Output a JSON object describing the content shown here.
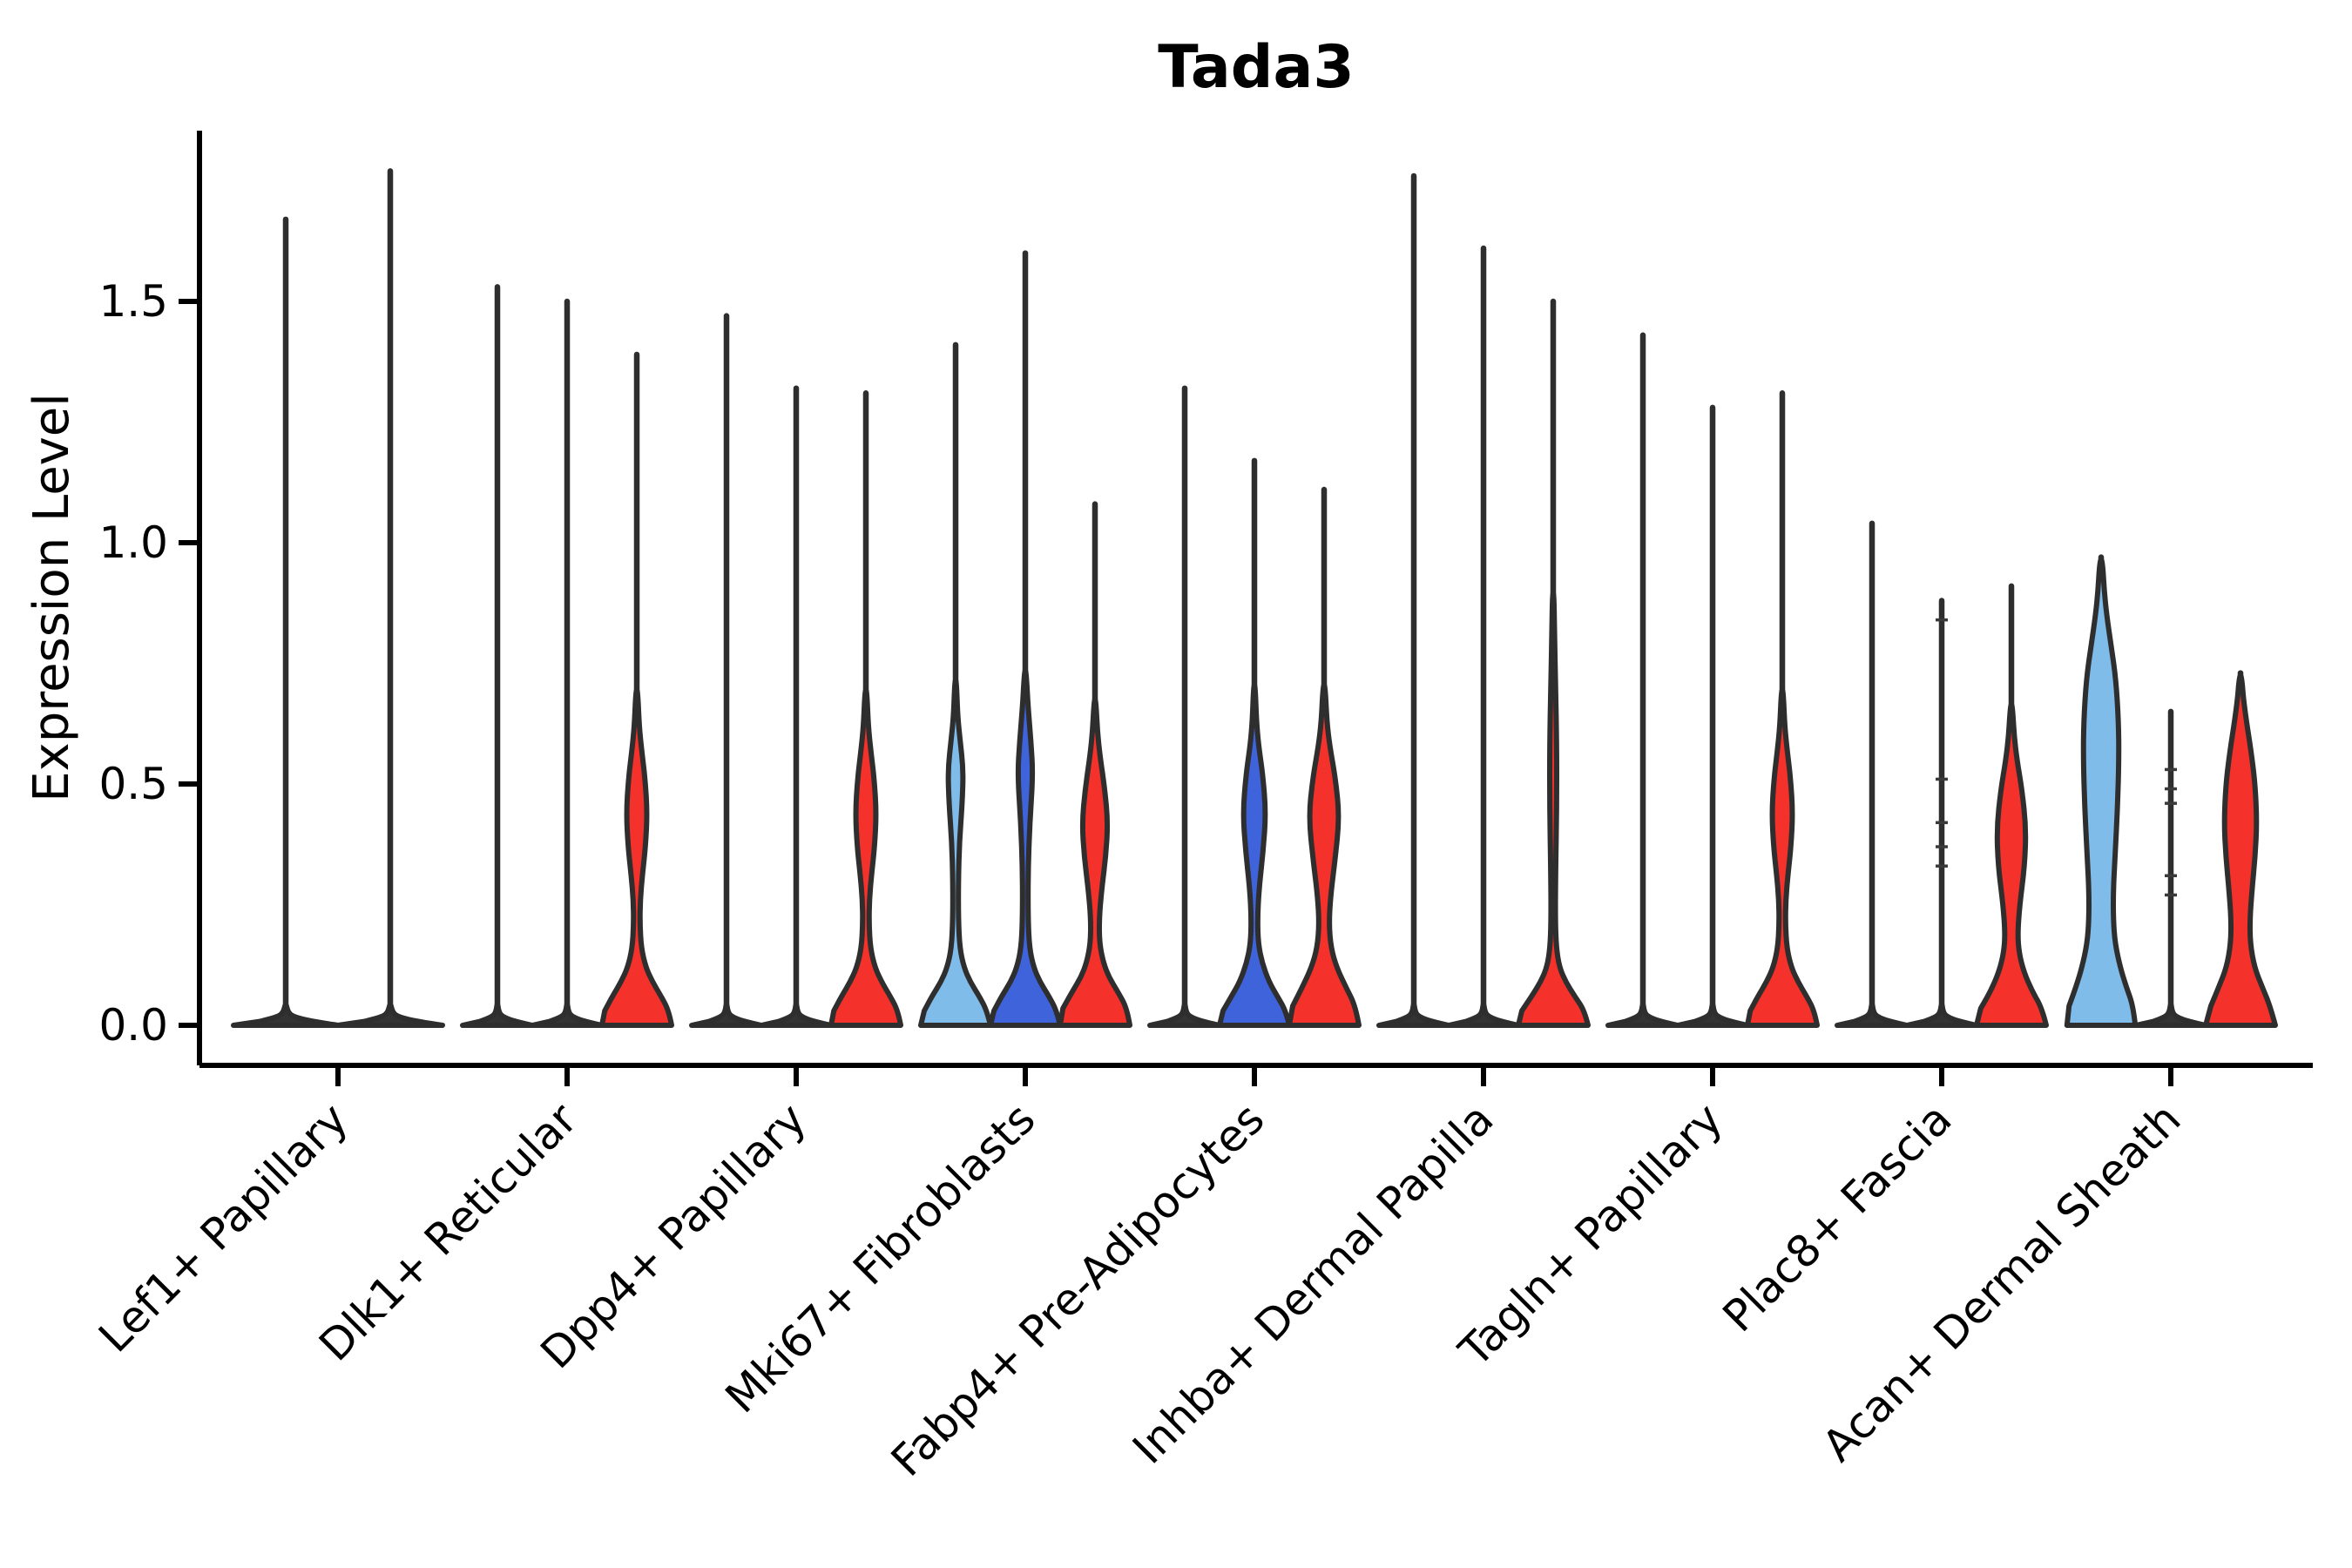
{
  "title": "Tada3",
  "axes": {
    "ylabel": "Expression Level",
    "xlabel": ""
  },
  "colors": {
    "red": "#f4312a",
    "light_blue": "#80bce9",
    "dark_blue": "#3f63da",
    "dark": "#333333",
    "outline": "#2e2e2e",
    "axis": "#000000",
    "background": "#ffffff"
  },
  "chart_data": {
    "type": "violin",
    "title": "Tada3",
    "ylabel": "Expression Level",
    "xlabel": "",
    "ylim": [
      -0.08,
      1.85
    ],
    "grid": false,
    "legend": null,
    "y_ticks": [
      {
        "value": 0.0,
        "label": "0.0"
      },
      {
        "value": 0.5,
        "label": "0.5"
      },
      {
        "value": 1.0,
        "label": "1.0"
      },
      {
        "value": 1.5,
        "label": "1.5"
      }
    ],
    "profiles": {
      "flat": [
        [
          0,
          1.0
        ],
        [
          0.008,
          0.5
        ],
        [
          0.018,
          0.14
        ],
        [
          0.028,
          0.04
        ]
      ],
      "lens": [
        [
          0,
          1.0
        ],
        [
          0.03,
          0.92
        ],
        [
          0.06,
          0.7
        ],
        [
          0.09,
          0.45
        ],
        [
          0.12,
          0.26
        ],
        [
          0.16,
          0.13
        ],
        [
          0.21,
          0.09
        ],
        [
          0.26,
          0.1
        ],
        [
          0.31,
          0.16
        ],
        [
          0.37,
          0.25
        ],
        [
          0.44,
          0.3
        ],
        [
          0.51,
          0.24
        ],
        [
          0.57,
          0.14
        ],
        [
          0.62,
          0.07
        ],
        [
          0.68,
          0.035
        ]
      ],
      "lb4": [
        [
          0,
          1.0
        ],
        [
          0.03,
          0.9
        ],
        [
          0.06,
          0.68
        ],
        [
          0.09,
          0.42
        ],
        [
          0.12,
          0.24
        ],
        [
          0.16,
          0.12
        ],
        [
          0.22,
          0.08
        ],
        [
          0.3,
          0.08
        ],
        [
          0.38,
          0.11
        ],
        [
          0.46,
          0.19
        ],
        [
          0.53,
          0.22
        ],
        [
          0.59,
          0.13
        ],
        [
          0.64,
          0.06
        ],
        [
          0.7,
          0.03
        ]
      ],
      "db4": [
        [
          0,
          1.0
        ],
        [
          0.03,
          0.9
        ],
        [
          0.06,
          0.68
        ],
        [
          0.09,
          0.42
        ],
        [
          0.12,
          0.24
        ],
        [
          0.16,
          0.12
        ],
        [
          0.22,
          0.08
        ],
        [
          0.32,
          0.08
        ],
        [
          0.42,
          0.13
        ],
        [
          0.52,
          0.22
        ],
        [
          0.59,
          0.16
        ],
        [
          0.66,
          0.08
        ],
        [
          0.72,
          0.035
        ]
      ],
      "red4": [
        [
          0,
          1.0
        ],
        [
          0.035,
          0.92
        ],
        [
          0.07,
          0.65
        ],
        [
          0.1,
          0.4
        ],
        [
          0.13,
          0.24
        ],
        [
          0.17,
          0.13
        ],
        [
          0.22,
          0.12
        ],
        [
          0.28,
          0.19
        ],
        [
          0.35,
          0.31
        ],
        [
          0.42,
          0.37
        ],
        [
          0.49,
          0.28
        ],
        [
          0.56,
          0.14
        ],
        [
          0.61,
          0.07
        ],
        [
          0.66,
          0.035
        ]
      ],
      "db5": [
        [
          0,
          1.0
        ],
        [
          0.03,
          0.9
        ],
        [
          0.06,
          0.66
        ],
        [
          0.09,
          0.42
        ],
        [
          0.13,
          0.22
        ],
        [
          0.17,
          0.11
        ],
        [
          0.22,
          0.09
        ],
        [
          0.28,
          0.13
        ],
        [
          0.36,
          0.25
        ],
        [
          0.44,
          0.33
        ],
        [
          0.52,
          0.24
        ],
        [
          0.58,
          0.12
        ],
        [
          0.63,
          0.06
        ],
        [
          0.69,
          0.03
        ]
      ],
      "red5": [
        [
          0,
          1.0
        ],
        [
          0.04,
          0.9
        ],
        [
          0.08,
          0.62
        ],
        [
          0.12,
          0.36
        ],
        [
          0.16,
          0.2
        ],
        [
          0.21,
          0.14
        ],
        [
          0.27,
          0.19
        ],
        [
          0.34,
          0.31
        ],
        [
          0.43,
          0.44
        ],
        [
          0.51,
          0.33
        ],
        [
          0.58,
          0.16
        ],
        [
          0.63,
          0.08
        ],
        [
          0.69,
          0.04
        ]
      ],
      "red6": [
        [
          0,
          1.0
        ],
        [
          0.03,
          0.9
        ],
        [
          0.06,
          0.62
        ],
        [
          0.09,
          0.36
        ],
        [
          0.12,
          0.18
        ],
        [
          0.16,
          0.09
        ],
        [
          0.22,
          0.06
        ],
        [
          0.32,
          0.07
        ],
        [
          0.45,
          0.1
        ],
        [
          0.58,
          0.1
        ],
        [
          0.7,
          0.07
        ],
        [
          0.8,
          0.04
        ],
        [
          0.88,
          0.025
        ]
      ],
      "red8": [
        [
          0,
          1.0
        ],
        [
          0.035,
          0.88
        ],
        [
          0.07,
          0.6
        ],
        [
          0.11,
          0.36
        ],
        [
          0.15,
          0.22
        ],
        [
          0.19,
          0.18
        ],
        [
          0.25,
          0.24
        ],
        [
          0.33,
          0.38
        ],
        [
          0.41,
          0.42
        ],
        [
          0.49,
          0.3
        ],
        [
          0.55,
          0.16
        ],
        [
          0.6,
          0.08
        ],
        [
          0.65,
          0.04
        ]
      ],
      "lb9": [
        [
          0,
          0.98
        ],
        [
          0.04,
          0.92
        ],
        [
          0.08,
          0.72
        ],
        [
          0.12,
          0.55
        ],
        [
          0.17,
          0.4
        ],
        [
          0.22,
          0.35
        ],
        [
          0.28,
          0.35
        ],
        [
          0.35,
          0.4
        ],
        [
          0.45,
          0.47
        ],
        [
          0.55,
          0.51
        ],
        [
          0.63,
          0.5
        ],
        [
          0.72,
          0.42
        ],
        [
          0.79,
          0.28
        ],
        [
          0.85,
          0.16
        ],
        [
          0.9,
          0.09
        ],
        [
          0.95,
          0.05
        ]
      ],
      "red9": [
        [
          0,
          1.0
        ],
        [
          0.04,
          0.85
        ],
        [
          0.08,
          0.62
        ],
        [
          0.12,
          0.4
        ],
        [
          0.17,
          0.28
        ],
        [
          0.22,
          0.27
        ],
        [
          0.28,
          0.33
        ],
        [
          0.35,
          0.42
        ],
        [
          0.42,
          0.47
        ],
        [
          0.5,
          0.42
        ],
        [
          0.57,
          0.3
        ],
        [
          0.63,
          0.17
        ],
        [
          0.68,
          0.08
        ],
        [
          0.71,
          0.05
        ]
      ]
    },
    "groups": [
      {
        "label": "Lef1+ Papillary",
        "violins": [
          {
            "color": "dark",
            "max": 1.67,
            "profile": "flat",
            "points": []
          },
          {
            "color": "dark",
            "max": 1.77,
            "profile": "flat",
            "points": []
          }
        ]
      },
      {
        "label": "Dlk1+ Reticular",
        "violins": [
          {
            "color": "dark",
            "max": 1.53,
            "profile": "flat",
            "points": []
          },
          {
            "color": "dark",
            "max": 1.5,
            "profile": "flat",
            "points": []
          },
          {
            "color": "red",
            "max": 1.39,
            "profile": "lens",
            "points": []
          }
        ]
      },
      {
        "label": "Dpp4+ Papillary",
        "violins": [
          {
            "color": "dark",
            "max": 1.47,
            "profile": "flat",
            "points": []
          },
          {
            "color": "dark",
            "max": 1.32,
            "profile": "flat",
            "points": []
          },
          {
            "color": "red",
            "max": 1.31,
            "profile": "lens",
            "points": []
          }
        ]
      },
      {
        "label": "Mki67+ Fibroblasts",
        "violins": [
          {
            "color": "light_blue",
            "max": 1.41,
            "profile": "lb4",
            "points": []
          },
          {
            "color": "dark_blue",
            "max": 1.6,
            "profile": "db4",
            "points": []
          },
          {
            "color": "red",
            "max": 1.08,
            "profile": "red4",
            "points": []
          }
        ]
      },
      {
        "label": "Fabp4+ Pre-Adipocytes",
        "violins": [
          {
            "color": "dark",
            "max": 1.32,
            "profile": "flat",
            "points": []
          },
          {
            "color": "dark_blue",
            "max": 1.17,
            "profile": "db5",
            "points": []
          },
          {
            "color": "red",
            "max": 1.11,
            "profile": "red5",
            "points": []
          }
        ]
      },
      {
        "label": "Inhba+ Dermal Papilla",
        "violins": [
          {
            "color": "dark",
            "max": 1.76,
            "profile": "flat",
            "points": []
          },
          {
            "color": "dark",
            "max": 1.61,
            "profile": "flat",
            "points": []
          },
          {
            "color": "red",
            "max": 1.5,
            "profile": "red6",
            "points": []
          }
        ]
      },
      {
        "label": "Tagln+ Papillary",
        "violins": [
          {
            "color": "dark",
            "max": 1.43,
            "profile": "flat",
            "points": []
          },
          {
            "color": "dark",
            "max": 1.28,
            "profile": "flat",
            "points": []
          },
          {
            "color": "red",
            "max": 1.31,
            "profile": "lens",
            "points": []
          }
        ]
      },
      {
        "label": "Plac8+ Fascia",
        "violins": [
          {
            "color": "dark",
            "max": 1.04,
            "profile": "flat",
            "points": []
          },
          {
            "color": "dark",
            "max": 0.88,
            "profile": "flat",
            "points": [
              0.84,
              0.51,
              0.42,
              0.37,
              0.33
            ]
          },
          {
            "color": "red",
            "max": 0.91,
            "profile": "red8",
            "points": []
          }
        ]
      },
      {
        "label": "Acan+ Dermal Sheath",
        "violins": [
          {
            "color": "light_blue",
            "max": 0.97,
            "profile": "lb9",
            "points": []
          },
          {
            "color": "dark",
            "max": 0.65,
            "profile": "flat",
            "points": [
              0.53,
              0.49,
              0.46,
              0.31,
              0.27
            ]
          },
          {
            "color": "red",
            "max": 0.73,
            "profile": "red9",
            "points": []
          }
        ]
      }
    ]
  }
}
